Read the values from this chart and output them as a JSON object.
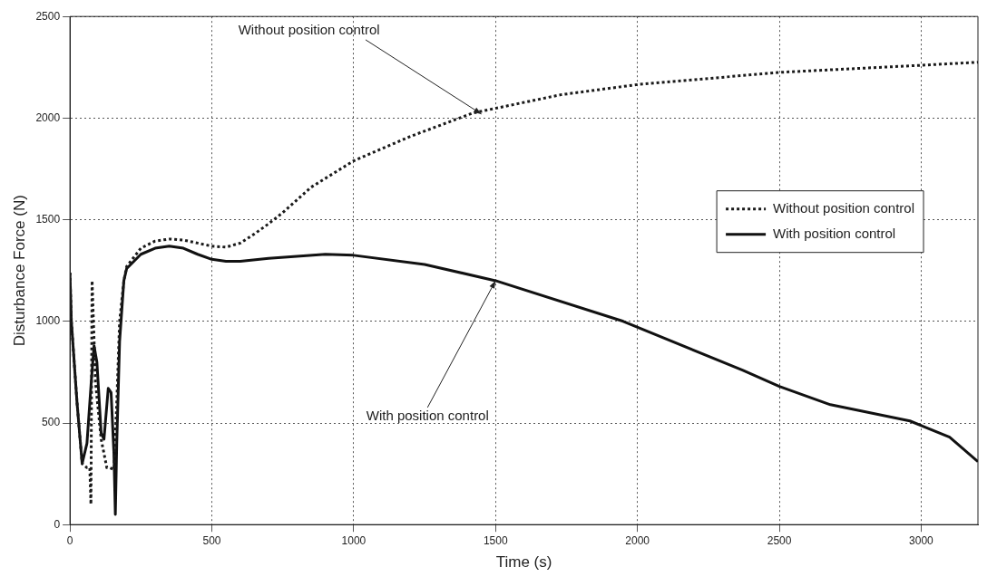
{
  "chart_data": {
    "type": "line",
    "xlabel": "Time (s)",
    "ylabel": "Disturbance Force (N)",
    "xlim": [
      0,
      3200
    ],
    "xticks": [
      0,
      500,
      1000,
      1500,
      2000,
      2500,
      3000
    ],
    "ylim": [
      0,
      2500
    ],
    "yticks": [
      0,
      500,
      1000,
      1500,
      2000,
      2500
    ],
    "grid": true,
    "legend": "right",
    "marker": "none",
    "series": [
      {
        "name": "Without position control",
        "color": "#1a1a1a",
        "line_style": "dotted",
        "x": [
          0,
          5,
          25,
          43,
          60,
          70,
          74,
          78,
          90,
          110,
          130,
          140,
          155,
          165,
          175,
          190,
          200,
          250,
          300,
          350,
          400,
          450,
          500,
          550,
          600,
          650,
          700,
          750,
          850,
          1000,
          1200,
          1420,
          1730,
          2000,
          2500,
          3000,
          3200
        ],
        "values": [
          1240,
          1000,
          600,
          300,
          280,
          280,
          100,
          1200,
          700,
          420,
          280,
          280,
          270,
          600,
          1000,
          1200,
          1270,
          1360,
          1395,
          1405,
          1400,
          1385,
          1370,
          1365,
          1385,
          1430,
          1480,
          1535,
          1660,
          1790,
          1910,
          2025,
          2115,
          2165,
          2225,
          2260,
          2275
        ]
      },
      {
        "name": "With position control",
        "color": "#111111",
        "line_style": "solid",
        "x": [
          0,
          5,
          25,
          43,
          60,
          75,
          85,
          95,
          110,
          120,
          135,
          145,
          155,
          160,
          165,
          175,
          190,
          200,
          250,
          300,
          350,
          400,
          450,
          500,
          550,
          600,
          700,
          900,
          1000,
          1250,
          1500,
          1950,
          2370,
          2500,
          2680,
          2960,
          3100,
          3200
        ],
        "values": [
          1240,
          1000,
          600,
          300,
          400,
          700,
          880,
          800,
          450,
          420,
          670,
          650,
          350,
          50,
          400,
          900,
          1200,
          1260,
          1330,
          1360,
          1370,
          1360,
          1330,
          1305,
          1295,
          1295,
          1310,
          1330,
          1325,
          1280,
          1200,
          1000,
          760,
          680,
          590,
          510,
          430,
          310
        ]
      }
    ],
    "annotations": [
      {
        "text": "Without position control",
        "x": 1450,
        "y": 2020
      },
      {
        "text": "With position control",
        "x": 1500,
        "y": 1200
      }
    ]
  }
}
